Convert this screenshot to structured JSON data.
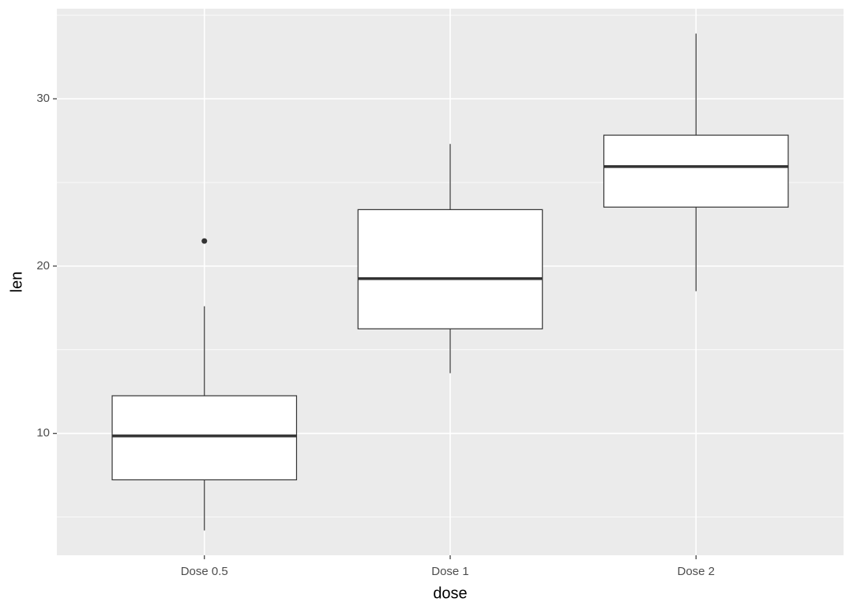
{
  "chart_data": {
    "type": "box",
    "x_label": "dose",
    "y_label": "len",
    "categories": [
      "Dose 0.5",
      "Dose 1",
      "Dose 2"
    ],
    "boxes": [
      {
        "min": 4.2,
        "q1": 7.225,
        "median": 9.85,
        "q3": 12.25,
        "max": 17.6,
        "outliers": [
          21.5
        ]
      },
      {
        "min": 13.6,
        "q1": 16.25,
        "median": 19.25,
        "q3": 23.375,
        "max": 27.3,
        "outliers": []
      },
      {
        "min": 18.5,
        "q1": 23.525,
        "median": 25.95,
        "q3": 27.825,
        "max": 33.9,
        "outliers": []
      }
    ],
    "ylim": [
      2.715,
      35.385
    ],
    "yticks": [
      10,
      20,
      30
    ],
    "yminorticks": [
      5,
      15,
      25,
      35
    ],
    "grid": true,
    "color": "#333333",
    "fill": "#ffffff",
    "panel_color": "#ebebeb"
  }
}
